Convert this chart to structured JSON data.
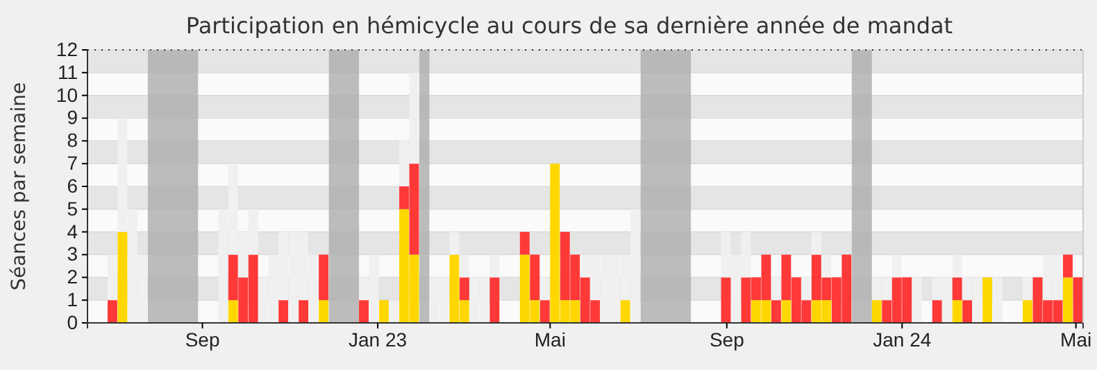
{
  "chart_data": {
    "type": "bar",
    "title": "Participation en hémicycle au cours de sa dernière année de mandat",
    "ylabel": "Séances par semaine",
    "x": [
      "2022-06-13",
      "2022-06-20",
      "2022-06-27",
      "2022-07-04",
      "2022-07-11",
      "2022-07-18",
      "2022-07-25",
      "2022-08-01",
      "2022-08-08",
      "2022-08-15",
      "2022-08-22",
      "2022-08-29",
      "2022-09-05",
      "2022-09-12",
      "2022-09-19",
      "2022-09-26",
      "2022-10-03",
      "2022-10-10",
      "2022-10-17",
      "2022-10-24",
      "2022-10-31",
      "2022-11-07",
      "2022-11-14",
      "2022-11-21",
      "2022-11-28",
      "2022-12-05",
      "2022-12-12",
      "2022-12-19",
      "2022-12-26",
      "2023-01-02",
      "2023-01-09",
      "2023-01-16",
      "2023-01-23",
      "2023-01-30",
      "2023-02-06",
      "2023-02-13",
      "2023-02-20",
      "2023-02-27",
      "2023-03-06",
      "2023-03-13",
      "2023-03-20",
      "2023-03-27",
      "2023-04-03",
      "2023-04-10",
      "2023-04-17",
      "2023-04-24",
      "2023-05-01",
      "2023-05-08",
      "2023-05-15",
      "2023-05-22",
      "2023-05-29",
      "2023-06-05",
      "2023-06-12",
      "2023-06-19",
      "2023-06-26",
      "2023-07-03",
      "2023-07-10",
      "2023-07-17",
      "2023-07-24",
      "2023-07-31",
      "2023-08-07",
      "2023-08-14",
      "2023-08-21",
      "2023-08-28",
      "2023-09-04",
      "2023-09-11",
      "2023-09-18",
      "2023-09-25",
      "2023-10-02",
      "2023-10-09",
      "2023-10-16",
      "2023-10-23",
      "2023-10-30",
      "2023-11-06",
      "2023-11-13",
      "2023-11-20",
      "2023-11-27",
      "2023-12-04",
      "2023-12-11",
      "2023-12-18",
      "2023-12-25",
      "2024-01-01",
      "2024-01-08",
      "2024-01-15",
      "2024-01-22",
      "2024-01-29",
      "2024-02-05",
      "2024-02-12",
      "2024-02-19",
      "2024-02-26",
      "2024-03-04",
      "2024-03-11",
      "2024-03-18",
      "2024-03-25",
      "2024-04-01",
      "2024-04-08",
      "2024-04-15",
      "2024-04-22",
      "2024-04-29"
    ],
    "series": [
      {
        "color": "#ffd700",
        "values": [
          0,
          0,
          0,
          4,
          0,
          0,
          0,
          0,
          0,
          0,
          0,
          0,
          0,
          0,
          1,
          0,
          0,
          0,
          0,
          0,
          0,
          0,
          0,
          1,
          0,
          0,
          0,
          0,
          0,
          1,
          0,
          5,
          3,
          0,
          0,
          0,
          3,
          1,
          0,
          0,
          0,
          0,
          0,
          3,
          1,
          0,
          7,
          1,
          1,
          0,
          0,
          0,
          0,
          1,
          0,
          0,
          0,
          0,
          0,
          0,
          0,
          0,
          0,
          0,
          0,
          0,
          1,
          1,
          0,
          1,
          0,
          0,
          1,
          1,
          0,
          0,
          0,
          0,
          1,
          0,
          0,
          0,
          0,
          0,
          0,
          0,
          1,
          0,
          0,
          2,
          0,
          0,
          0,
          1,
          0,
          0,
          0,
          2,
          0
        ]
      },
      {
        "color": "#ff3838",
        "values": [
          0,
          0,
          1,
          0,
          0,
          0,
          0,
          0,
          0,
          0,
          0,
          0,
          0,
          0,
          2,
          2,
          3,
          0,
          0,
          1,
          0,
          1,
          0,
          2,
          0,
          0,
          0,
          1,
          0,
          0,
          0,
          1,
          4,
          0,
          0,
          0,
          0,
          1,
          0,
          0,
          2,
          0,
          0,
          1,
          2,
          1,
          0,
          3,
          2,
          2,
          1,
          0,
          0,
          0,
          0,
          0,
          0,
          0,
          0,
          0,
          0,
          0,
          0,
          2,
          0,
          2,
          1,
          2,
          1,
          2,
          2,
          1,
          2,
          1,
          2,
          3,
          0,
          0,
          0,
          1,
          2,
          2,
          0,
          0,
          1,
          0,
          1,
          1,
          0,
          0,
          0,
          0,
          0,
          0,
          2,
          1,
          1,
          1,
          2
        ]
      },
      {
        "color": "#f0f0f0",
        "values": [
          0,
          0,
          2,
          5,
          5,
          3,
          0,
          0,
          0,
          0,
          0,
          0,
          0,
          5,
          4,
          2,
          2,
          2,
          3,
          3,
          4,
          3,
          3,
          0,
          0,
          0,
          0,
          1,
          3,
          0,
          1,
          2,
          4,
          0,
          2,
          2,
          1,
          1,
          2,
          2,
          1,
          0,
          0,
          0,
          0,
          1,
          0,
          0,
          0,
          1,
          2,
          3,
          3,
          2,
          5,
          0,
          0,
          0,
          0,
          0,
          0,
          0,
          0,
          2,
          3,
          2,
          0,
          0,
          1,
          0,
          0,
          1,
          1,
          1,
          0,
          0,
          0,
          0,
          1,
          1,
          1,
          0,
          2,
          0,
          1,
          2,
          1,
          1,
          2,
          0,
          2,
          0,
          0,
          1,
          0,
          2,
          2,
          0,
          0
        ]
      }
    ],
    "stacked": true,
    "xlim": [
      "2022-06-13",
      "2024-05-06"
    ],
    "xticks": [
      {
        "value": "2022-09-01",
        "label": "Sep"
      },
      {
        "value": "2023-01-01",
        "label": "Jan 23"
      },
      {
        "value": "2023-05-01",
        "label": "Mai"
      },
      {
        "value": "2023-09-01",
        "label": "Sep"
      },
      {
        "value": "2024-01-01",
        "label": "Jan 24"
      },
      {
        "value": "2024-05-01",
        "label": "Mai"
      }
    ],
    "ylim": [
      0,
      12
    ],
    "yticks": [
      0,
      1,
      2,
      3,
      4,
      5,
      6,
      7,
      8,
      9,
      10,
      11,
      12
    ],
    "grid": "y",
    "bands": [
      {
        "axis": "x",
        "from": "2022-07-25",
        "to": "2022-08-29",
        "color": "#b0b0b0"
      },
      {
        "axis": "x",
        "from": "2022-11-28",
        "to": "2022-12-19",
        "color": "#b0b0b0"
      },
      {
        "axis": "x",
        "from": "2023-01-30",
        "to": "2023-02-06",
        "color": "#b0b0b0"
      },
      {
        "axis": "x",
        "from": "2023-07-03",
        "to": "2023-08-07",
        "color": "#b0b0b0"
      },
      {
        "axis": "x",
        "from": "2023-11-27",
        "to": "2023-12-11",
        "color": "#b0b0b0"
      }
    ]
  }
}
